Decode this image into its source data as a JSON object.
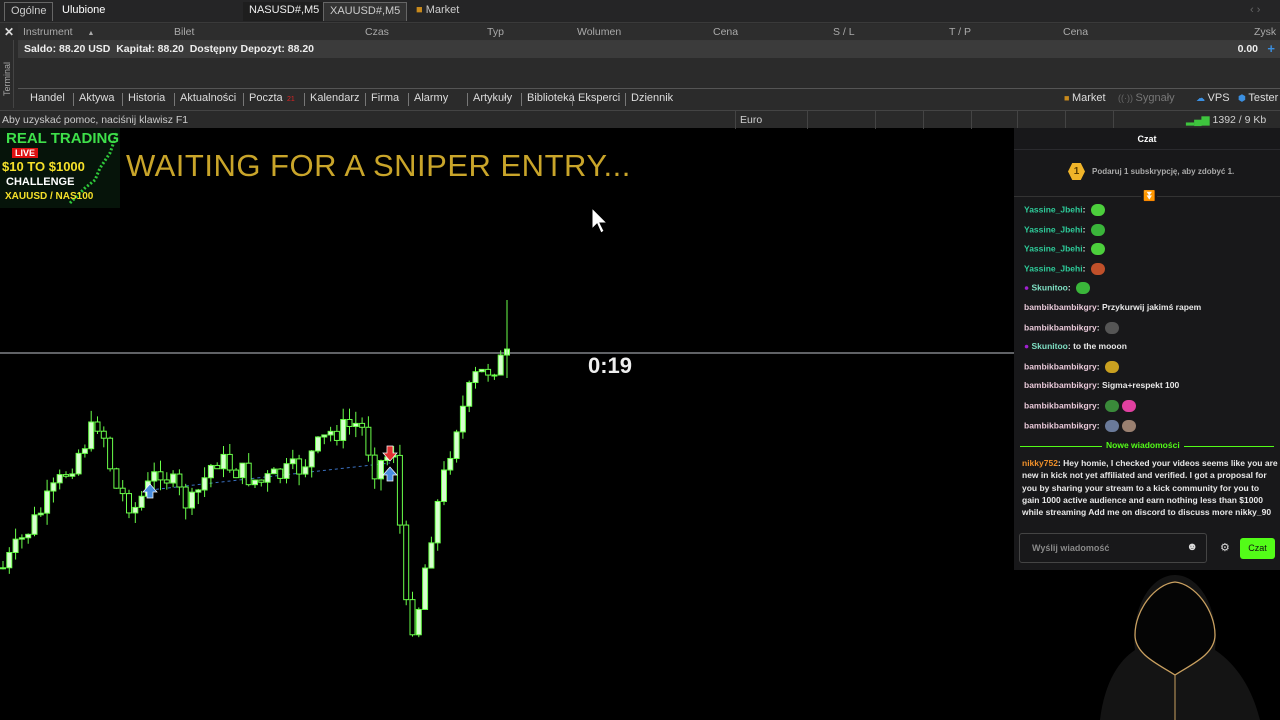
{
  "topbar": {
    "tabs": [
      "Ogólne",
      "Ulubione"
    ],
    "chart_tabs": [
      "NASUSD#,M5",
      "XAUUSD#,M5"
    ],
    "market": "Market"
  },
  "terminal": {
    "label": "Terminal",
    "columns": [
      "Instrument",
      "Bilet",
      "Czas",
      "Typ",
      "Wolumen",
      "Cena",
      "S / L",
      "T / P",
      "Cena",
      "Zysk"
    ],
    "balance_row": "Saldo: 88.20 USD  Kapitał: 88.20  Dostępny Depozyt: 88.20",
    "profit": "0.00",
    "tabs": [
      "Handel",
      "Aktywa",
      "Historia",
      "Aktualności",
      "Poczta",
      "Kalendarz",
      "Firma",
      "Alarmy",
      "Artykuły",
      "Biblioteka",
      "Eksperci",
      "Dziennik"
    ],
    "mail_count": "21",
    "right_links": [
      "Market",
      "Sygnały",
      "VPS",
      "Tester"
    ]
  },
  "status": {
    "help": "Aby uzyskać pomoc, naciśnij klawisz F1",
    "profile": "Euro",
    "traffic": "1392 / 9 Kb"
  },
  "overlay": {
    "title": "REAL TRADING",
    "live": "LIVE",
    "challenge_amount": "$10 TO $1000",
    "challenge": "CHALLENGE",
    "pairs": "XAUUSD / NAS100",
    "headline": "WAITING FOR A SNIPER ENTRY...",
    "timer": "0:19"
  },
  "chat": {
    "title": "Czat",
    "gift": "Podaruj 1 subskrypcję, aby zdobyć 1.",
    "gift_badge": "1",
    "messages": [
      {
        "user": "Yassine_Jbehi",
        "text": "",
        "color": "#2ecc9a",
        "emote": "#4ccf3c"
      },
      {
        "user": "Yassine_Jbehi",
        "text": "",
        "color": "#2ecc9a",
        "emote": "#3ab53a"
      },
      {
        "user": "Yassine_Jbehi",
        "text": "",
        "color": "#2ecc9a",
        "emote": "#4ccf3c"
      },
      {
        "user": "Yassine_Jbehi",
        "text": "",
        "color": "#2ecc9a",
        "emote": "#c0502a"
      },
      {
        "user": "Skunitoo",
        "text": "",
        "color": "#7fe0c4",
        "emote": "#3ab53a",
        "badge": true
      },
      {
        "user": "bambikbambikgry",
        "text": "Przykurwij jakimś rapem",
        "color": "#e8c8d8"
      },
      {
        "user": "bambikbambikgry",
        "text": "",
        "color": "#e8c8d8",
        "emote": "#555"
      },
      {
        "user": "Skunitoo",
        "text": "to the mooon",
        "color": "#7fe0c4",
        "badge": true
      },
      {
        "user": "bambikbambikgry",
        "text": "",
        "color": "#e8c8d8",
        "emote": "#c9a020"
      },
      {
        "user": "bambikbambikgry",
        "text": "Sigma+respekt 100",
        "color": "#e8c8d8"
      },
      {
        "user": "bambikbambikgry",
        "text": "",
        "color": "#e8c8d8",
        "emote": "#3a8a3a",
        "emote2": "#e040a0"
      },
      {
        "user": "bambikbambikgry",
        "text": "",
        "color": "#e8c8d8",
        "emote": "#6a7a9a",
        "emote2": "#9a8070"
      }
    ],
    "new_messages": "Nowe wiadomości",
    "last": {
      "user": "nikky752",
      "color": "#f0902a",
      "text": "Hey homie, I checked your videos seems like you are new in kick not yet affiliated and verified. I got a proposal for you by sharing your stream to a kick community for you to gain 1000 active audience and earn nothing less than $1000 while streaming Add me on discord to discuss more nikky_90"
    },
    "input_placeholder": "Wyślij wiadomość",
    "send": "Czat",
    "accent": "#53fc18"
  }
}
